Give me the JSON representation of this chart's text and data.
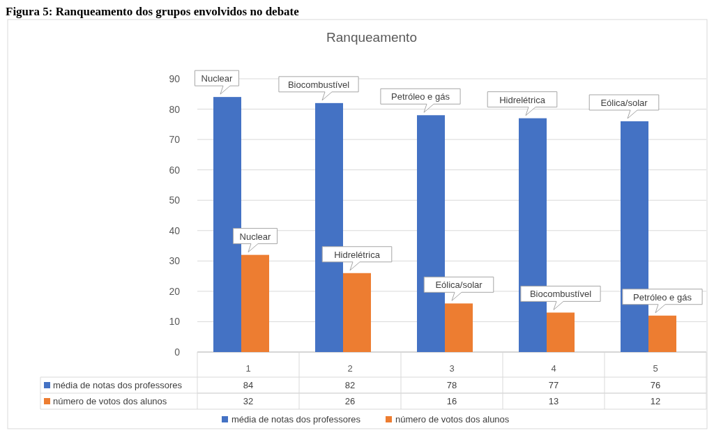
{
  "chart_data": {
    "type": "bar",
    "title": "Figura 5: Ranqueamento dos grupos envolvidos no debate",
    "subtitle": "Ranqueamento",
    "categories": [
      "1",
      "2",
      "3",
      "4",
      "5"
    ],
    "series": [
      {
        "name": "média de notas dos professores",
        "color": "#4472c4",
        "values": [
          84,
          82,
          78,
          77,
          76
        ]
      },
      {
        "name": "número de votos dos alunos",
        "color": "#ed7d31",
        "values": [
          32,
          26,
          16,
          13,
          12
        ]
      }
    ],
    "ylim": [
      0,
      90
    ],
    "yticks": [
      0,
      10,
      20,
      30,
      40,
      50,
      60,
      70,
      80,
      90
    ],
    "grid": "y",
    "legend": "bottom",
    "data_labels": true,
    "annotations": [
      "Nuclear",
      "Biocombustível",
      "Petróleo e gás",
      "Hidrelétrica",
      "Eólica/solar",
      "Nuclear",
      "Hidrelétrica",
      "Eólica/solar",
      "Biocombustível",
      "Petróleo e gás"
    ]
  }
}
